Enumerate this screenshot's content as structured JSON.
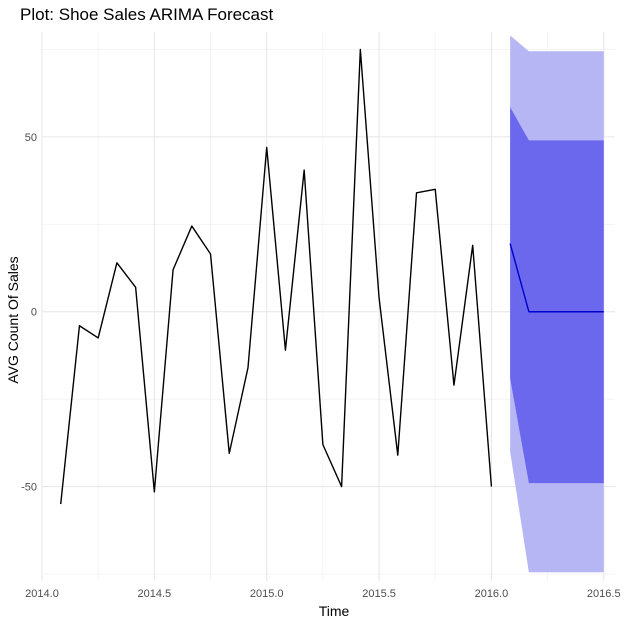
{
  "chart_data": {
    "type": "line",
    "title": "Plot: Shoe Sales ARIMA Forecast",
    "xlabel": "Time",
    "ylabel": "AVG Count Of Sales",
    "xlim": [
      2014.0,
      2016.55
    ],
    "ylim": [
      -77,
      80
    ],
    "x_ticks": [
      2014.0,
      2014.5,
      2015.0,
      2015.5,
      2016.0,
      2016.5
    ],
    "x_tick_labels": [
      "2014.0",
      "2014.5",
      "2015.0",
      "2015.5",
      "2016.0",
      "2016.5"
    ],
    "y_ticks": [
      -50,
      0,
      50
    ],
    "y_tick_labels": [
      "-50",
      "0",
      "50"
    ],
    "grid": true,
    "series": [
      {
        "role": "observed",
        "color": "#000000",
        "x": [
          2014.0833,
          2014.1667,
          2014.25,
          2014.3333,
          2014.4167,
          2014.5,
          2014.5833,
          2014.6667,
          2014.75,
          2014.8333,
          2014.9167,
          2015.0,
          2015.0833,
          2015.1667,
          2015.25,
          2015.3333,
          2015.4167,
          2015.5,
          2015.5833,
          2015.6667,
          2015.75,
          2015.8333,
          2015.9167,
          2016.0
        ],
        "values": [
          -55,
          -4,
          -7.5,
          14,
          7,
          -51.5,
          12,
          24.5,
          16.5,
          -40.5,
          -16,
          47,
          -11,
          40.5,
          -38,
          -50,
          75,
          4,
          -41,
          34,
          35,
          -21,
          19,
          -50
        ]
      },
      {
        "role": "forecast-mean",
        "color": "#0000cc",
        "x": [
          2016.0833,
          2016.1667,
          2016.25,
          2016.3333,
          2016.4167,
          2016.5
        ],
        "values": [
          19.5,
          0,
          0,
          0,
          0,
          0
        ]
      }
    ],
    "intervals": [
      {
        "level": "95",
        "color": "#b6b6f5",
        "x": [
          2016.0833,
          2016.1667,
          2016.25,
          2016.3333,
          2016.4167,
          2016.5
        ],
        "lower": [
          -40,
          -74.5,
          -74.5,
          -74.5,
          -74.5,
          -74.5
        ],
        "upper": [
          79,
          74.5,
          74.5,
          74.5,
          74.5,
          74.5
        ]
      },
      {
        "level": "80",
        "color": "#6b68ee",
        "x": [
          2016.0833,
          2016.1667,
          2016.25,
          2016.3333,
          2016.4167,
          2016.5
        ],
        "lower": [
          -19,
          -49,
          -49,
          -49,
          -49,
          -49
        ],
        "upper": [
          58.5,
          49,
          49,
          49,
          49,
          49
        ]
      }
    ],
    "colors": {
      "background": "#ffffff",
      "grid_major": "#e6e6e6",
      "grid_minor": "#f2f2f2"
    }
  }
}
